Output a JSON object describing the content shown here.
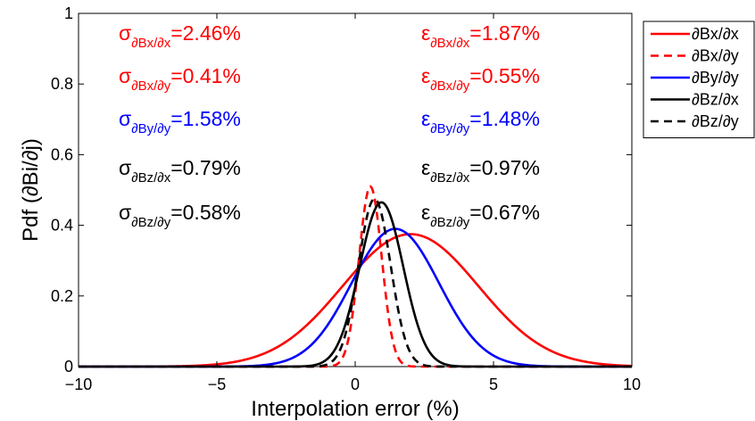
{
  "chart_data": {
    "type": "line",
    "title": "",
    "xlabel": "Interpolation error (%)",
    "ylabel": "Pdf (∂Bi/∂j)",
    "xlim": [
      -10,
      10
    ],
    "ylim": [
      0,
      1
    ],
    "x_ticks": [
      -10,
      -5,
      0,
      5,
      10
    ],
    "x_tick_labels": [
      "−10",
      "−5",
      "0",
      "5",
      "10"
    ],
    "y_ticks": [
      0,
      0.2,
      0.4,
      0.6,
      0.8,
      1
    ],
    "y_tick_labels": [
      "0",
      "0.2",
      "0.4",
      "0.6",
      "0.8",
      "1"
    ],
    "grid": false,
    "legend_position": "outside-top-right",
    "series": [
      {
        "name": "∂Bx/∂x",
        "color": "#ff0000",
        "dash": "solid",
        "mean": 2.0,
        "sigma": 2.46,
        "peak": 0.375
      },
      {
        "name": "∂Bx/∂y",
        "color": "#ff0000",
        "dash": "dashed",
        "mean": 0.55,
        "sigma": 0.41,
        "peak": 0.51
      },
      {
        "name": "∂By/∂y",
        "color": "#0000ff",
        "dash": "solid",
        "mean": 1.45,
        "sigma": 1.58,
        "peak": 0.39
      },
      {
        "name": "∂Bz/∂x",
        "color": "#000000",
        "dash": "solid",
        "mean": 0.95,
        "sigma": 0.79,
        "peak": 0.465
      },
      {
        "name": "∂Bz/∂y",
        "color": "#000000",
        "dash": "dashed",
        "mean": 0.7,
        "sigma": 0.58,
        "peak": 0.475
      }
    ],
    "annotations": [
      {
        "symbol": "σ",
        "sub": "∂Bx/∂x",
        "value": "=2.46%",
        "color": "#ff0000",
        "column": "left",
        "row": 0
      },
      {
        "symbol": "σ",
        "sub": "∂Bx/∂y",
        "value": "=0.41%",
        "color": "#ff0000",
        "column": "left",
        "row": 1
      },
      {
        "symbol": "σ",
        "sub": "∂By/∂y",
        "value": "=1.58%",
        "color": "#0000ff",
        "column": "left",
        "row": 2
      },
      {
        "symbol": "σ",
        "sub": "∂Bz/∂x",
        "value": "=0.79%",
        "color": "#000000",
        "column": "left",
        "row": 3
      },
      {
        "symbol": "σ",
        "sub": "∂Bz/∂y",
        "value": "=0.58%",
        "color": "#000000",
        "column": "left",
        "row": 4
      },
      {
        "symbol": "ε",
        "sub": "∂Bx/∂x",
        "value": "=1.87%",
        "color": "#ff0000",
        "column": "right",
        "row": 0
      },
      {
        "symbol": "ε",
        "sub": "∂Bx/∂y",
        "value": "=0.55%",
        "color": "#ff0000",
        "column": "right",
        "row": 1
      },
      {
        "symbol": "ε",
        "sub": "∂By/∂y",
        "value": "=1.48%",
        "color": "#0000ff",
        "column": "right",
        "row": 2
      },
      {
        "symbol": "ε",
        "sub": "∂Bz/∂x",
        "value": "=0.97%",
        "color": "#000000",
        "column": "right",
        "row": 3
      },
      {
        "symbol": "ε",
        "sub": "∂Bz/∂y",
        "value": "=0.67%",
        "color": "#000000",
        "column": "right",
        "row": 4
      }
    ]
  }
}
